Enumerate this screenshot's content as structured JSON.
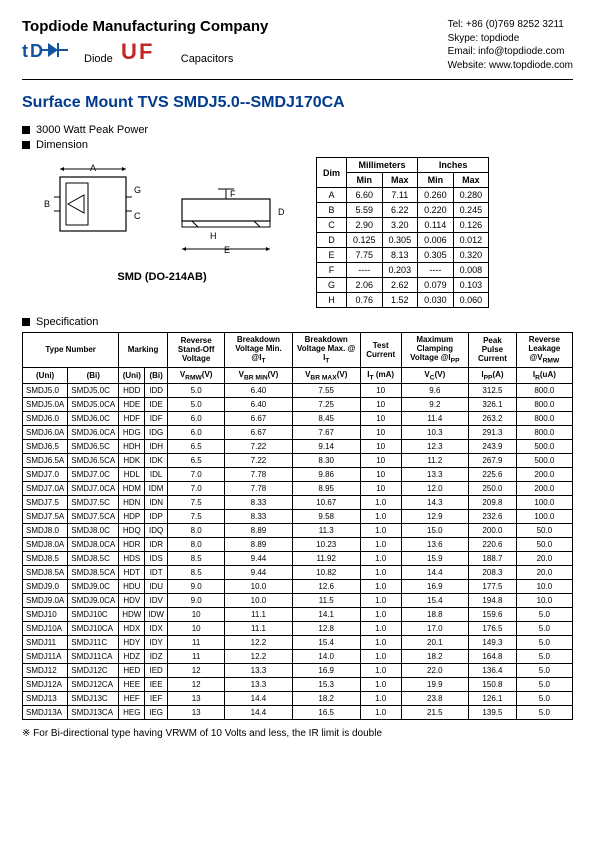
{
  "header": {
    "company": "Topdiode Manufacturing Company",
    "tel": "Tel: +86 (0)769 8252 3211",
    "skype": "Skype: topdiode",
    "email": "Email: info@topdiode.com",
    "website": "Website: www.topdiode.com",
    "logo1_label": "Diode",
    "logo2_label": "Capacitors"
  },
  "title": "Surface Mount TVS  SMDJ5.0--SMDJ170CA",
  "bullets": [
    "3000 Watt Peak Power",
    "Dimension"
  ],
  "pkg_name": "SMD (DO-214AB)",
  "dim_table": {
    "headers1": [
      "Dim",
      "Millimeters",
      "Inches"
    ],
    "headers2": [
      "",
      "Min",
      "Max",
      "Min",
      "Max"
    ],
    "rows": [
      [
        "A",
        "6.60",
        "7.11",
        "0.260",
        "0.280"
      ],
      [
        "B",
        "5.59",
        "6.22",
        "0.220",
        "0.245"
      ],
      [
        "C",
        "2.90",
        "3.20",
        "0.114",
        "0.126"
      ],
      [
        "D",
        "0.125",
        "0.305",
        "0.006",
        "0.012"
      ],
      [
        "E",
        "7.75",
        "8.13",
        "0.305",
        "0.320"
      ],
      [
        "F",
        "----",
        "0.203",
        "----",
        "0.008"
      ],
      [
        "G",
        "2.06",
        "2.62",
        "0.079",
        "0.103"
      ],
      [
        "H",
        "0.76",
        "1.52",
        "0.030",
        "0.060"
      ]
    ]
  },
  "spec_label": "Specification",
  "spec_headers": {
    "r1": [
      "Type Number",
      "Marking",
      "Reverse Stand-Off Voltage",
      "Breakdown Voltage Min. @I",
      "Breakdown Voltage Max. @ I",
      "Test Current",
      "Maximum Clamping Voltage @I",
      "Peak Pulse Current",
      "Reverse Leakage @V"
    ],
    "r1_sub": [
      "",
      "",
      "",
      "T",
      "T",
      "",
      "PP",
      "",
      "RMW"
    ],
    "r2": [
      "(Uni)",
      "(Bi)",
      "(Uni)",
      "(Bi)",
      "V",
      "V",
      "V",
      "I",
      "V",
      "I",
      "I"
    ],
    "r2_sub": [
      "",
      "",
      "",
      "",
      "RMW",
      "BR MIN",
      "BR MAX",
      "T",
      "C",
      "PP",
      "R"
    ],
    "r2_unit": [
      "",
      "",
      "",
      "",
      "(V)",
      "(V)",
      "(V)",
      " (mA)",
      "(V)",
      "(A)",
      "(uA)"
    ]
  },
  "spec_rows": [
    [
      "SMDJ5.0",
      "SMDJ5.0C",
      "HDD",
      "IDD",
      "5.0",
      "6.40",
      "7.55",
      "10",
      "9.6",
      "312.5",
      "800.0"
    ],
    [
      "SMDJ5.0A",
      "SMDJ5.0CA",
      "HDE",
      "IDE",
      "5.0",
      "6.40",
      "7.25",
      "10",
      "9.2",
      "326.1",
      "800.0"
    ],
    [
      "SMDJ6.0",
      "SMDJ6.0C",
      "HDF",
      "IDF",
      "6.0",
      "6.67",
      "8.45",
      "10",
      "11.4",
      "263.2",
      "800.0"
    ],
    [
      "SMDJ6.0A",
      "SMDJ6.0CA",
      "HDG",
      "IDG",
      "6.0",
      "6.67",
      "7.67",
      "10",
      "10.3",
      "291.3",
      "800.0"
    ],
    [
      "SMDJ6.5",
      "SMDJ6.5C",
      "HDH",
      "IDH",
      "6.5",
      "7.22",
      "9.14",
      "10",
      "12.3",
      "243.9",
      "500.0"
    ],
    [
      "SMDJ6.5A",
      "SMDJ6.5CA",
      "HDK",
      "IDK",
      "6.5",
      "7.22",
      "8.30",
      "10",
      "11.2",
      "267.9",
      "500.0"
    ],
    [
      "SMDJ7.0",
      "SMDJ7.0C",
      "HDL",
      "IDL",
      "7.0",
      "7.78",
      "9.86",
      "10",
      "13.3",
      "225.6",
      "200.0"
    ],
    [
      "SMDJ7.0A",
      "SMDJ7.0CA",
      "HDM",
      "IDM",
      "7.0",
      "7.78",
      "8.95",
      "10",
      "12.0",
      "250.0",
      "200.0"
    ],
    [
      "SMDJ7.5",
      "SMDJ7.5C",
      "HDN",
      "IDN",
      "7.5",
      "8.33",
      "10.67",
      "1.0",
      "14.3",
      "209.8",
      "100.0"
    ],
    [
      "SMDJ7.5A",
      "SMDJ7.5CA",
      "HDP",
      "IDP",
      "7.5",
      "8.33",
      "9.58",
      "1.0",
      "12.9",
      "232.6",
      "100.0"
    ],
    [
      "SMDJ8.0",
      "SMDJ8.0C",
      "HDQ",
      "IDQ",
      "8.0",
      "8.89",
      "11.3",
      "1.0",
      "15.0",
      "200.0",
      "50.0"
    ],
    [
      "SMDJ8.0A",
      "SMDJ8.0CA",
      "HDR",
      "IDR",
      "8.0",
      "8.89",
      "10.23",
      "1.0",
      "13.6",
      "220.6",
      "50.0"
    ],
    [
      "SMDJ8.5",
      "SMDJ8.5C",
      "HDS",
      "IDS",
      "8.5",
      "9.44",
      "11.92",
      "1.0",
      "15.9",
      "188.7",
      "20.0"
    ],
    [
      "SMDJ8.5A",
      "SMDJ8.5CA",
      "HDT",
      "IDT",
      "8.5",
      "9.44",
      "10.82",
      "1.0",
      "14.4",
      "208.3",
      "20.0"
    ],
    [
      "SMDJ9.0",
      "SMDJ9.0C",
      "HDU",
      "IDU",
      "9.0",
      "10.0",
      "12.6",
      "1.0",
      "16.9",
      "177.5",
      "10.0"
    ],
    [
      "SMDJ9.0A",
      "SMDJ9.0CA",
      "HDV",
      "IDV",
      "9.0",
      "10.0",
      "11.5",
      "1.0",
      "15.4",
      "194.8",
      "10.0"
    ],
    [
      "SMDJ10",
      "SMDJ10C",
      "HDW",
      "IDW",
      "10",
      "11.1",
      "14.1",
      "1.0",
      "18.8",
      "159.6",
      "5.0"
    ],
    [
      "SMDJ10A",
      "SMDJ10CA",
      "HDX",
      "IDX",
      "10",
      "11.1",
      "12.8",
      "1.0",
      "17.0",
      "176.5",
      "5.0"
    ],
    [
      "SMDJ11",
      "SMDJ11C",
      "HDY",
      "IDY",
      "11",
      "12.2",
      "15.4",
      "1.0",
      "20.1",
      "149.3",
      "5.0"
    ],
    [
      "SMDJ11A",
      "SMDJ11CA",
      "HDZ",
      "IDZ",
      "11",
      "12.2",
      "14.0",
      "1.0",
      "18.2",
      "164.8",
      "5.0"
    ],
    [
      "SMDJ12",
      "SMDJ12C",
      "HED",
      "IED",
      "12",
      "13.3",
      "16.9",
      "1.0",
      "22.0",
      "136.4",
      "5.0"
    ],
    [
      "SMDJ12A",
      "SMDJ12CA",
      "HEE",
      "IEE",
      "12",
      "13.3",
      "15.3",
      "1.0",
      "19.9",
      "150.8",
      "5.0"
    ],
    [
      "SMDJ13",
      "SMDJ13C",
      "HEF",
      "IEF",
      "13",
      "14.4",
      "18.2",
      "1.0",
      "23.8",
      "126.1",
      "5.0"
    ],
    [
      "SMDJ13A",
      "SMDJ13CA",
      "HEG",
      "IEG",
      "13",
      "14.4",
      "16.5",
      "1.0",
      "21.5",
      "139.5",
      "5.0"
    ]
  ],
  "group_breaks": [
    4,
    8,
    12,
    16,
    20
  ],
  "footnote": "※  For Bi-directional type having VRWM of 10 Volts and less, the IR limit is double",
  "colors": {
    "title": "#003b8e",
    "logo1": "#12559d",
    "logo2": "#c02727"
  }
}
